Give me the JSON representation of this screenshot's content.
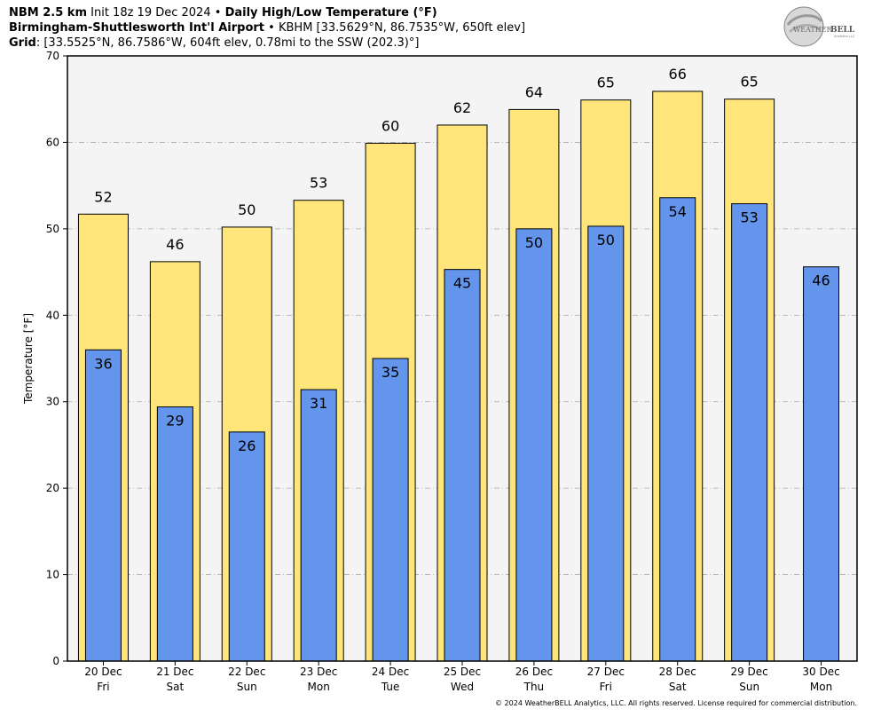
{
  "header": {
    "line1_model": "NBM 2.5 km",
    "line1_init": "Init 18z 19 Dec 2024",
    "line1_sep": "•",
    "line1_product": "Daily High/Low Temperature (°F)",
    "line2_station": "Birmingham-Shuttlesworth Int'l Airport",
    "line2_sep": "•",
    "line2_info": "KBHM [33.5629°N, 86.7535°W, 650ft elev]",
    "line3_label": "Grid",
    "line3_info": ": [33.5525°N, 86.7586°W, 604ft elev, 0.78mi to the SSW (202.3)°]"
  },
  "logo": {
    "text_a": "WEATHER",
    "text_b": "BELL",
    "sub": "Analytics LLC"
  },
  "footer": {
    "text": "© 2024 WeatherBELL Analytics, LLC. All rights reserved. License required for commercial distribution."
  },
  "colors": {
    "high": "#ffe57a",
    "low": "#6495ed",
    "plot_bg": "#f4f4f4",
    "grid": "#aaaaaa"
  },
  "chart_data": {
    "type": "bar",
    "ylabel": "Temperature [°F]",
    "ylim": [
      0,
      70
    ],
    "yticks": [
      0,
      10,
      20,
      30,
      40,
      50,
      60,
      70
    ],
    "grid": true,
    "categories": [
      {
        "date": "20 Dec",
        "day": "Fri"
      },
      {
        "date": "21 Dec",
        "day": "Sat"
      },
      {
        "date": "22 Dec",
        "day": "Sun"
      },
      {
        "date": "23 Dec",
        "day": "Mon"
      },
      {
        "date": "24 Dec",
        "day": "Tue"
      },
      {
        "date": "25 Dec",
        "day": "Wed"
      },
      {
        "date": "26 Dec",
        "day": "Thu"
      },
      {
        "date": "27 Dec",
        "day": "Fri"
      },
      {
        "date": "28 Dec",
        "day": "Sat"
      },
      {
        "date": "29 Dec",
        "day": "Sun"
      },
      {
        "date": "30 Dec",
        "day": "Mon"
      }
    ],
    "series": [
      {
        "key": "high",
        "values": [
          51.7,
          46.2,
          50.2,
          53.3,
          59.9,
          62.0,
          63.8,
          64.9,
          65.9,
          65.0,
          null
        ],
        "labels": [
          "52",
          "46",
          "50",
          "53",
          "60",
          "62",
          "64",
          "65",
          "66",
          "65",
          null
        ]
      },
      {
        "key": "low",
        "values": [
          36.0,
          29.4,
          26.5,
          31.4,
          35.0,
          45.3,
          50.0,
          50.3,
          53.6,
          52.9,
          45.6
        ],
        "labels": [
          "36",
          "29",
          "26",
          "31",
          "35",
          "45",
          "50",
          "50",
          "54",
          "53",
          "46"
        ]
      }
    ]
  }
}
